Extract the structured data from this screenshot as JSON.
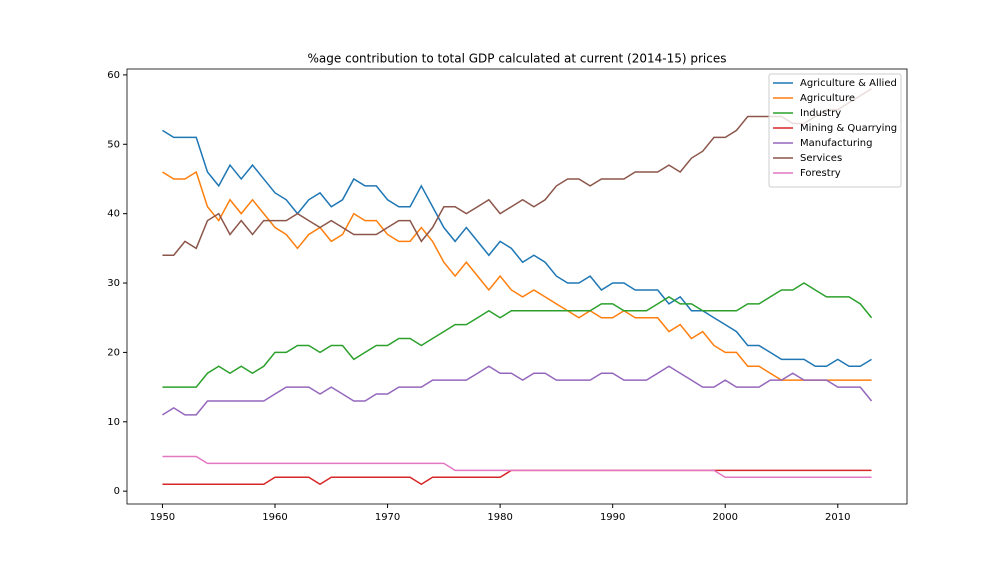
{
  "chart_data": {
    "type": "line",
    "title": "%age contribution to total GDP calculated at current (2014-15) prices",
    "x": [
      1950,
      1951,
      1952,
      1953,
      1954,
      1955,
      1956,
      1957,
      1958,
      1959,
      1960,
      1961,
      1962,
      1963,
      1964,
      1965,
      1966,
      1967,
      1968,
      1969,
      1970,
      1971,
      1972,
      1973,
      1974,
      1975,
      1976,
      1977,
      1978,
      1979,
      1980,
      1981,
      1982,
      1983,
      1984,
      1985,
      1986,
      1987,
      1988,
      1989,
      1990,
      1991,
      1992,
      1993,
      1994,
      1995,
      1996,
      1997,
      1998,
      1999,
      2000,
      2001,
      2002,
      2003,
      2004,
      2005,
      2006,
      2007,
      2008,
      2009,
      2010,
      2011,
      2012,
      2013
    ],
    "series": [
      {
        "name": "Agriculture & Allied",
        "color": "#1f77b4",
        "values": [
          52,
          51,
          51,
          51,
          46,
          44,
          47,
          45,
          47,
          45,
          43,
          42,
          40,
          42,
          43,
          41,
          42,
          45,
          44,
          44,
          42,
          41,
          41,
          44,
          41,
          38,
          36,
          38,
          36,
          34,
          36,
          35,
          33,
          34,
          33,
          31,
          30,
          30,
          31,
          29,
          30,
          30,
          29,
          29,
          29,
          27,
          28,
          26,
          26,
          25,
          24,
          23,
          21,
          21,
          20,
          19,
          19,
          19,
          18,
          18,
          19,
          18,
          18,
          19
        ]
      },
      {
        "name": "Agriculture",
        "color": "#ff7f0e",
        "values": [
          46,
          45,
          45,
          46,
          41,
          39,
          42,
          40,
          42,
          40,
          38,
          37,
          35,
          37,
          38,
          36,
          37,
          40,
          39,
          39,
          37,
          36,
          36,
          38,
          36,
          33,
          31,
          33,
          31,
          29,
          31,
          29,
          28,
          29,
          28,
          27,
          26,
          25,
          26,
          25,
          25,
          26,
          25,
          25,
          25,
          23,
          24,
          22,
          23,
          21,
          20,
          20,
          18,
          18,
          17,
          16,
          16,
          16,
          16,
          16,
          16,
          16,
          16,
          16
        ]
      },
      {
        "name": "Industry",
        "color": "#2ca02c",
        "values": [
          15,
          15,
          15,
          15,
          17,
          18,
          17,
          18,
          17,
          18,
          20,
          20,
          21,
          21,
          20,
          21,
          21,
          19,
          20,
          21,
          21,
          22,
          22,
          21,
          22,
          23,
          24,
          24,
          25,
          26,
          25,
          26,
          26,
          26,
          26,
          26,
          26,
          26,
          26,
          27,
          27,
          26,
          26,
          26,
          27,
          28,
          27,
          27,
          26,
          26,
          26,
          26,
          27,
          27,
          28,
          29,
          29,
          30,
          29,
          28,
          28,
          28,
          27,
          25
        ]
      },
      {
        "name": "Mining & Quarrying",
        "color": "#d62728",
        "values": [
          1,
          1,
          1,
          1,
          1,
          1,
          1,
          1,
          1,
          1,
          2,
          2,
          2,
          2,
          1,
          2,
          2,
          2,
          2,
          2,
          2,
          2,
          2,
          1,
          2,
          2,
          2,
          2,
          2,
          2,
          2,
          3,
          3,
          3,
          3,
          3,
          3,
          3,
          3,
          3,
          3,
          3,
          3,
          3,
          3,
          3,
          3,
          3,
          3,
          3,
          3,
          3,
          3,
          3,
          3,
          3,
          3,
          3,
          3,
          3,
          3,
          3,
          3,
          3
        ]
      },
      {
        "name": "Manufacturing",
        "color": "#9467bd",
        "values": [
          11,
          12,
          11,
          11,
          13,
          13,
          13,
          13,
          13,
          13,
          14,
          15,
          15,
          15,
          14,
          15,
          14,
          13,
          13,
          14,
          14,
          15,
          15,
          15,
          16,
          16,
          16,
          16,
          17,
          18,
          17,
          17,
          16,
          17,
          17,
          16,
          16,
          16,
          16,
          17,
          17,
          16,
          16,
          16,
          17,
          18,
          17,
          16,
          15,
          15,
          16,
          15,
          15,
          15,
          16,
          16,
          17,
          16,
          16,
          16,
          15,
          15,
          15,
          13
        ]
      },
      {
        "name": "Services",
        "color": "#8c564b",
        "values": [
          34,
          34,
          36,
          35,
          39,
          40,
          37,
          39,
          37,
          39,
          39,
          39,
          40,
          39,
          38,
          39,
          38,
          37,
          37,
          37,
          38,
          39,
          39,
          36,
          38,
          41,
          41,
          40,
          41,
          42,
          40,
          41,
          42,
          41,
          42,
          44,
          45,
          45,
          44,
          45,
          45,
          45,
          46,
          46,
          46,
          47,
          46,
          48,
          49,
          51,
          51,
          52,
          54,
          54,
          54,
          54,
          53,
          53,
          54,
          55,
          55,
          56,
          57,
          58
        ]
      },
      {
        "name": "Forestry",
        "color": "#e377c2",
        "values": [
          5,
          5,
          5,
          5,
          4,
          4,
          4,
          4,
          4,
          4,
          4,
          4,
          4,
          4,
          4,
          4,
          4,
          4,
          4,
          4,
          4,
          4,
          4,
          4,
          4,
          4,
          3,
          3,
          3,
          3,
          3,
          3,
          3,
          3,
          3,
          3,
          3,
          3,
          3,
          3,
          3,
          3,
          3,
          3,
          3,
          3,
          3,
          3,
          3,
          3,
          2,
          2,
          2,
          2,
          2,
          2,
          2,
          2,
          2,
          2,
          2,
          2,
          2,
          2
        ]
      }
    ],
    "xlim": [
      1946.85,
      2016.15
    ],
    "xticks": [
      1950,
      1960,
      1970,
      1980,
      1990,
      2000,
      2010
    ],
    "ylim": [
      -1.85,
      60.85
    ],
    "yticks": [
      0,
      10,
      20,
      30,
      40,
      50,
      60
    ],
    "legend": "upper right"
  }
}
